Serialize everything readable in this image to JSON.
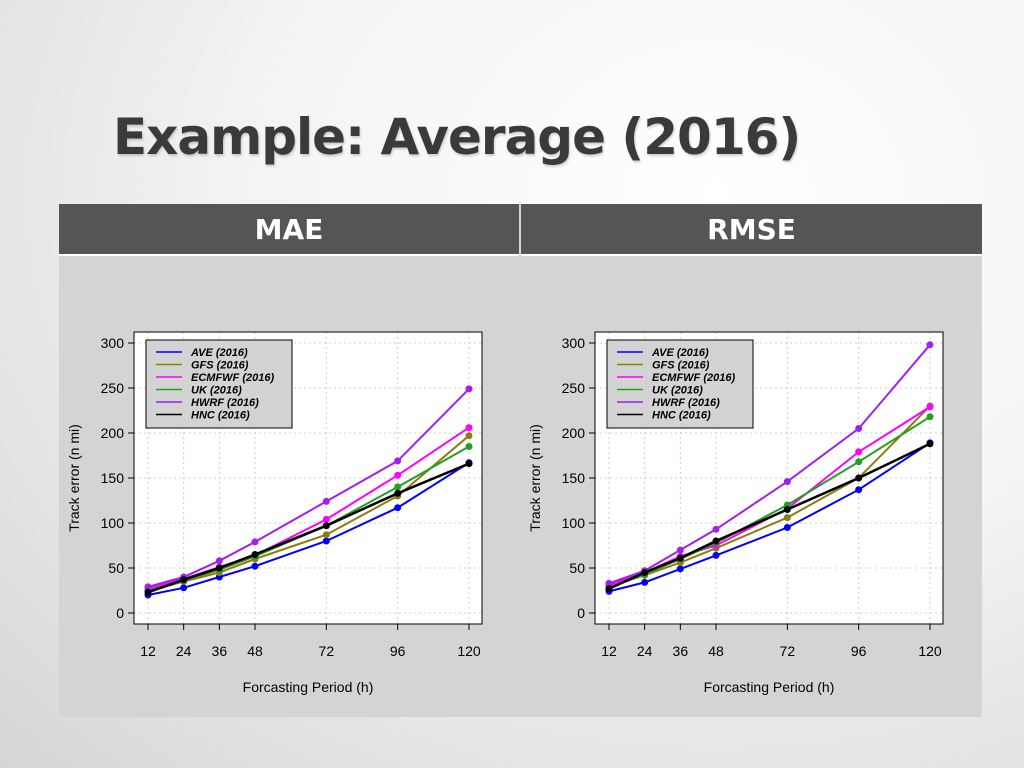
{
  "slide": {
    "title": "Example: Average (2016)"
  },
  "table": {
    "headers": [
      "MAE",
      "RMSE"
    ]
  },
  "legend_entries": [
    "AVE (2016)",
    "GFS (2016)",
    "ECMFWF (2016)",
    "UK (2016)",
    "HWRF (2016)",
    "HNC (2016)"
  ],
  "series_colors": {
    "AVE (2016)": "#0000ff",
    "GFS (2016)": "#8b7d10",
    "ECMFWF (2016)": "#ff00ff",
    "UK (2016)": "#22a022",
    "HWRF (2016)": "#a020f0",
    "HNC (2016)": "#000000"
  },
  "chart_data": [
    {
      "type": "line",
      "xlabel": "Forcasting Period (h)",
      "ylabel": "Track error (n mi)",
      "x": [
        12,
        24,
        36,
        48,
        72,
        96,
        120
      ],
      "xlim": [
        12,
        120
      ],
      "ylim": [
        0,
        300
      ],
      "yticks": [
        0,
        50,
        100,
        150,
        200,
        250,
        300
      ],
      "grid": true,
      "legend_position": "top-left",
      "series": [
        {
          "name": "AVE (2016)",
          "values": [
            20,
            28,
            40,
            52,
            80,
            117,
            167
          ]
        },
        {
          "name": "GFS (2016)",
          "values": [
            24,
            35,
            45,
            60,
            87,
            130,
            197
          ]
        },
        {
          "name": "ECMFWF (2016)",
          "values": [
            27,
            38,
            51,
            64,
            104,
            153,
            206
          ]
        },
        {
          "name": "UK (2016)",
          "values": [
            25,
            36,
            48,
            63,
            97,
            140,
            185
          ]
        },
        {
          "name": "HWRF (2016)",
          "values": [
            29,
            40,
            58,
            79,
            124,
            169,
            249
          ]
        },
        {
          "name": "HNC (2016)",
          "values": [
            23,
            37,
            50,
            65,
            97,
            133,
            166
          ]
        }
      ]
    },
    {
      "type": "line",
      "xlabel": "Forcasting Period (h)",
      "ylabel": "Track error (n mi)",
      "x": [
        12,
        24,
        36,
        48,
        72,
        96,
        120
      ],
      "xlim": [
        12,
        120
      ],
      "ylim": [
        0,
        300
      ],
      "yticks": [
        0,
        50,
        100,
        150,
        200,
        250,
        300
      ],
      "grid": true,
      "legend_position": "top-left",
      "series": [
        {
          "name": "AVE (2016)",
          "values": [
            24,
            34,
            49,
            64,
            95,
            137,
            189
          ]
        },
        {
          "name": "GFS (2016)",
          "values": [
            29,
            42,
            56,
            72,
            106,
            150,
            230
          ]
        },
        {
          "name": "ECMFWF (2016)",
          "values": [
            31,
            45,
            63,
            75,
            116,
            179,
            229
          ]
        },
        {
          "name": "UK (2016)",
          "values": [
            28,
            43,
            60,
            78,
            120,
            168,
            218
          ]
        },
        {
          "name": "HWRF (2016)",
          "values": [
            33,
            47,
            70,
            93,
            146,
            205,
            298
          ]
        },
        {
          "name": "HNC (2016)",
          "values": [
            27,
            45,
            61,
            80,
            115,
            150,
            188
          ]
        }
      ]
    }
  ]
}
